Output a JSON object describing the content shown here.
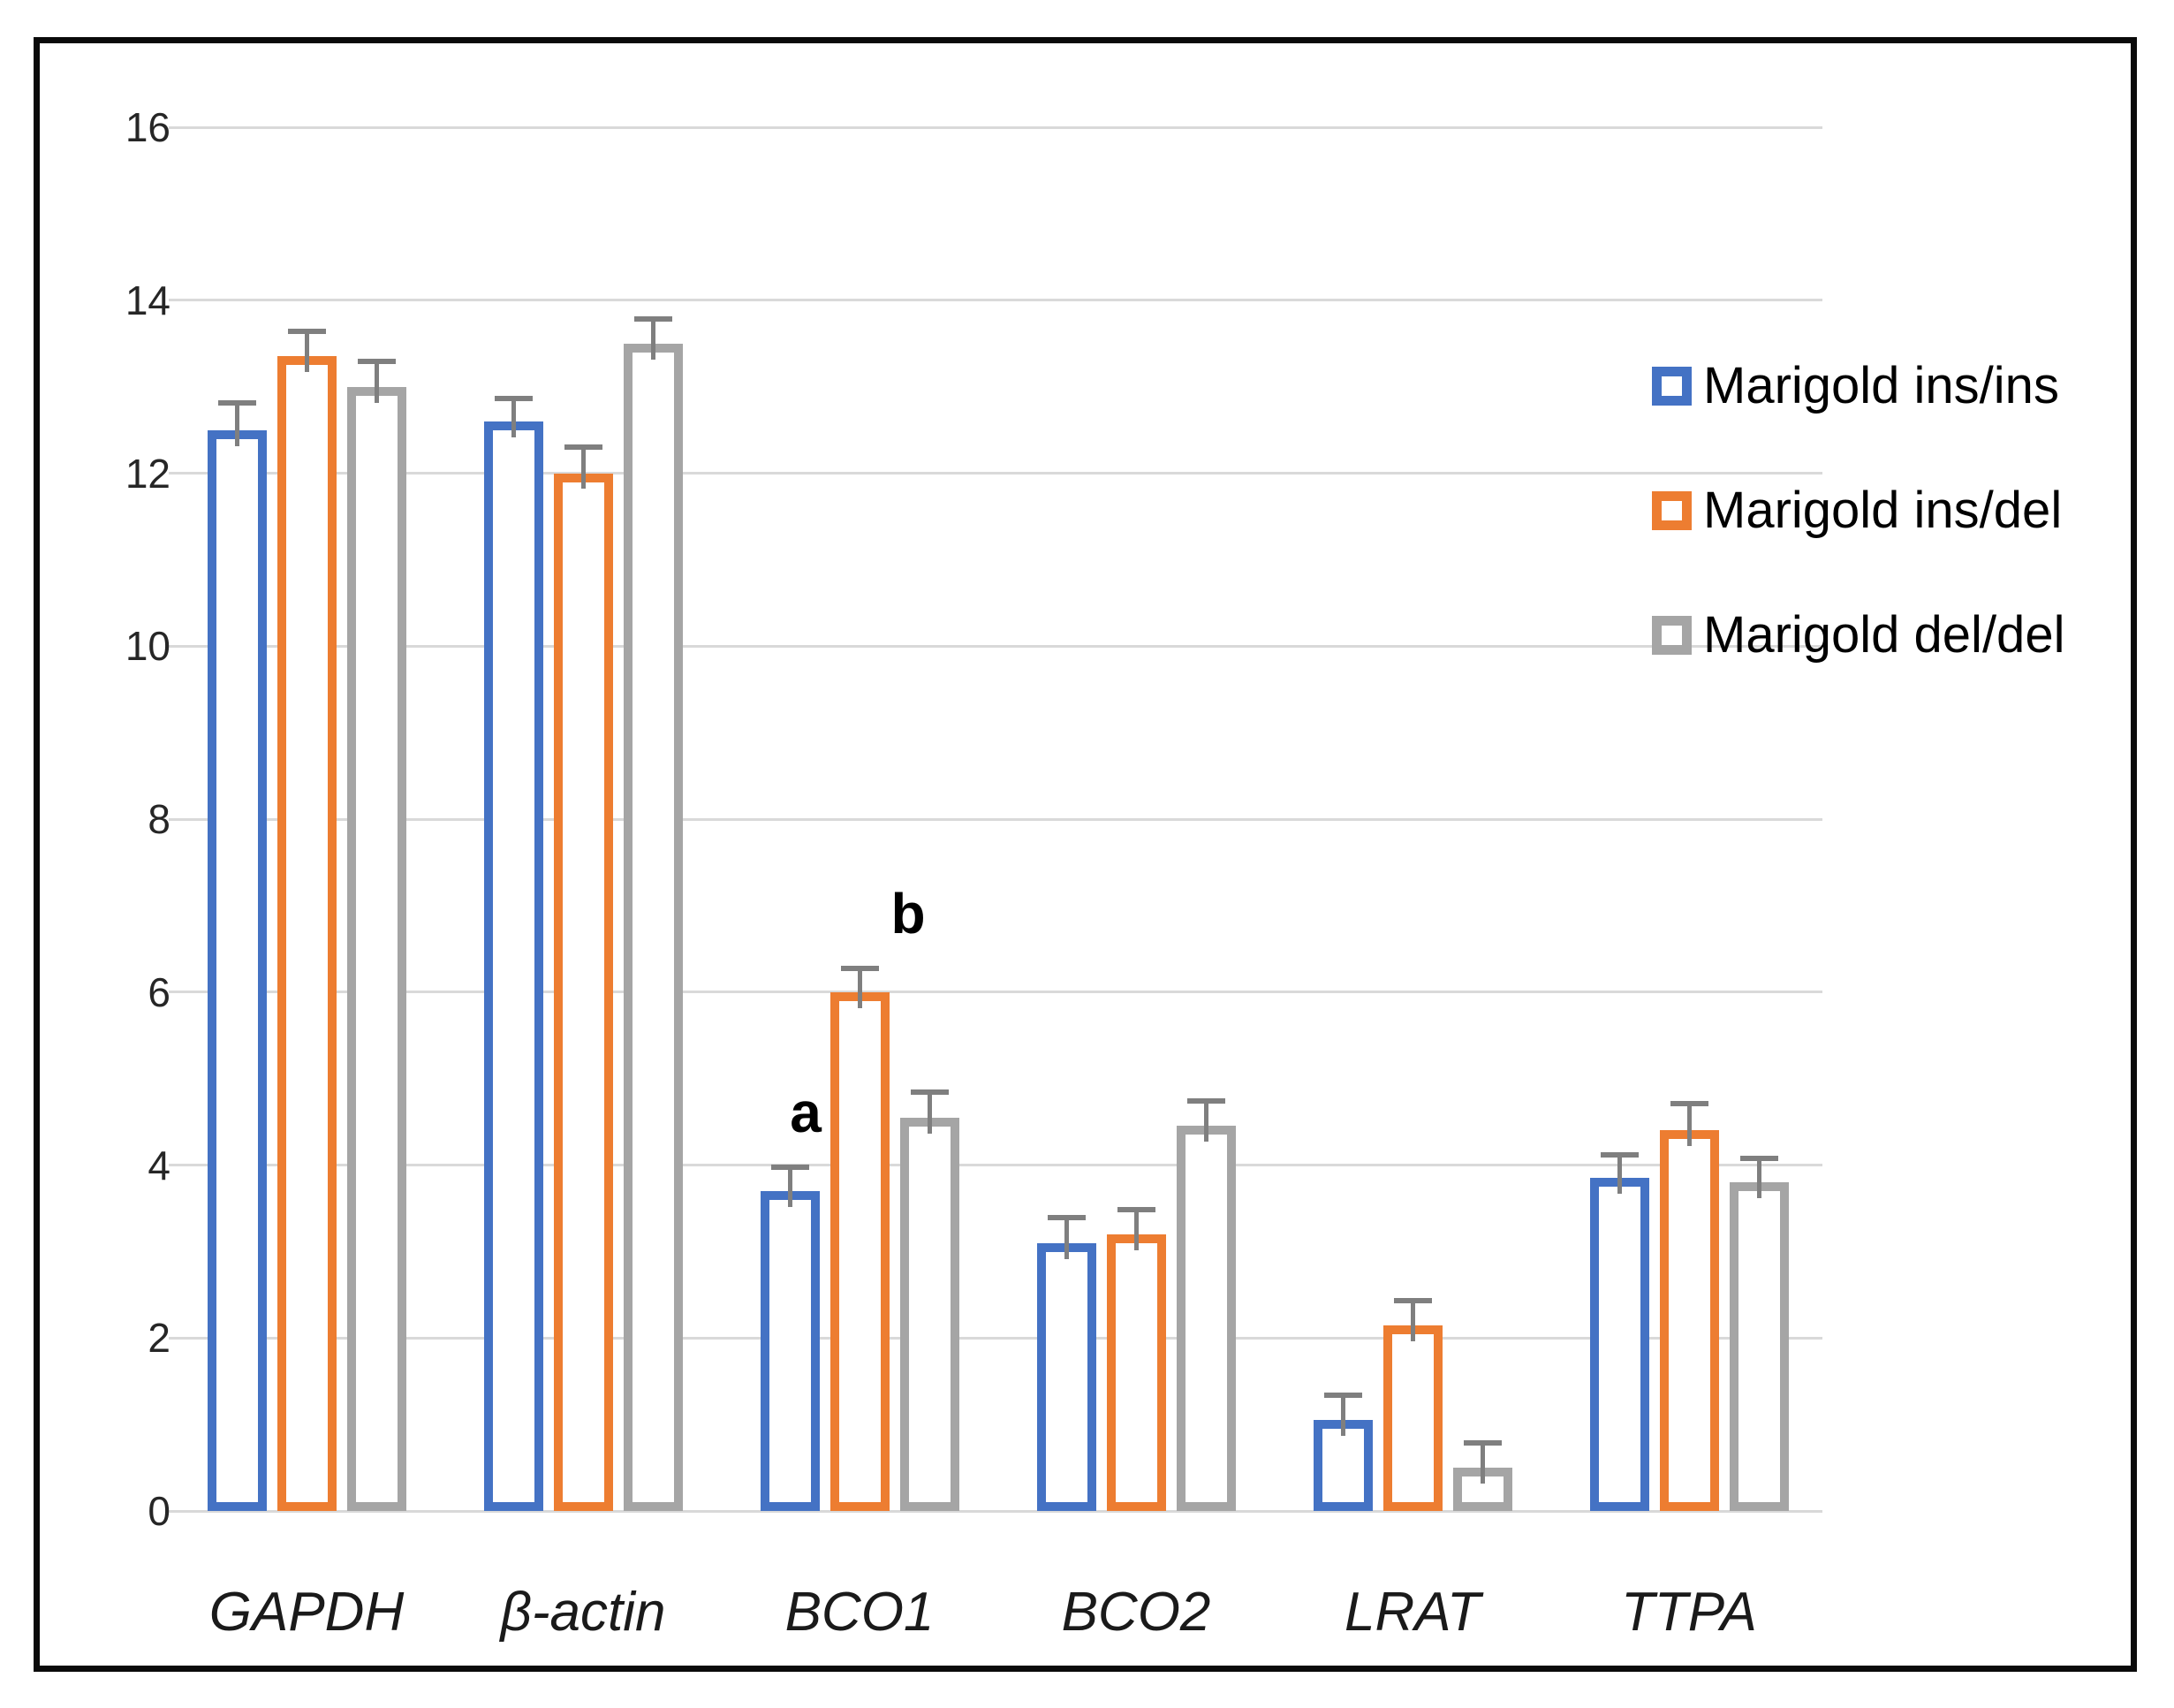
{
  "chart_data": {
    "type": "bar",
    "title": "",
    "categories": [
      "GAPDH",
      "β-actin",
      "BCO1",
      "BCO2",
      "LRAT",
      "TTPA"
    ],
    "series": [
      {
        "name": "Marigold ins/ins",
        "color": "#4472C4",
        "values": [
          12.5,
          12.6,
          3.7,
          3.1,
          1.05,
          3.85
        ],
        "errors": [
          0.31,
          0.26,
          0.27,
          0.29,
          0.29,
          0.27
        ]
      },
      {
        "name": "Marigold ins/del",
        "color": "#ED7D31",
        "values": [
          13.35,
          12.0,
          6.0,
          3.2,
          2.15,
          4.4
        ],
        "errors": [
          0.29,
          0.3,
          0.27,
          0.28,
          0.28,
          0.31
        ]
      },
      {
        "name": "Marigold del/del",
        "color": "#A5A5A5",
        "values": [
          13.0,
          13.5,
          4.55,
          4.45,
          0.5,
          3.8
        ],
        "errors": [
          0.29,
          0.28,
          0.29,
          0.29,
          0.29,
          0.28
        ]
      }
    ],
    "y_axis": {
      "min": 0,
      "max": 16,
      "tick_step": 2,
      "tick_labels": [
        "0",
        "2",
        "4",
        "6",
        "8",
        "10",
        "12",
        "14",
        "16"
      ]
    },
    "xlabel": "",
    "ylabel": "",
    "grid": true,
    "legend_position": "upper-right-inside",
    "bar_fill": "#FFFFFF",
    "gridline_color": "#D9D9D9",
    "error_bar_color": "#7F7F7F",
    "axis_text_color": "#262626",
    "frame_color": "#0a0a0a",
    "annotations": [
      {
        "text": "a",
        "category": "BCO1",
        "series": "Marigold ins/ins",
        "dx": 18
      },
      {
        "text": "b",
        "category": "BCO1",
        "series": "Marigold ins/del",
        "dx": 55
      }
    ]
  }
}
